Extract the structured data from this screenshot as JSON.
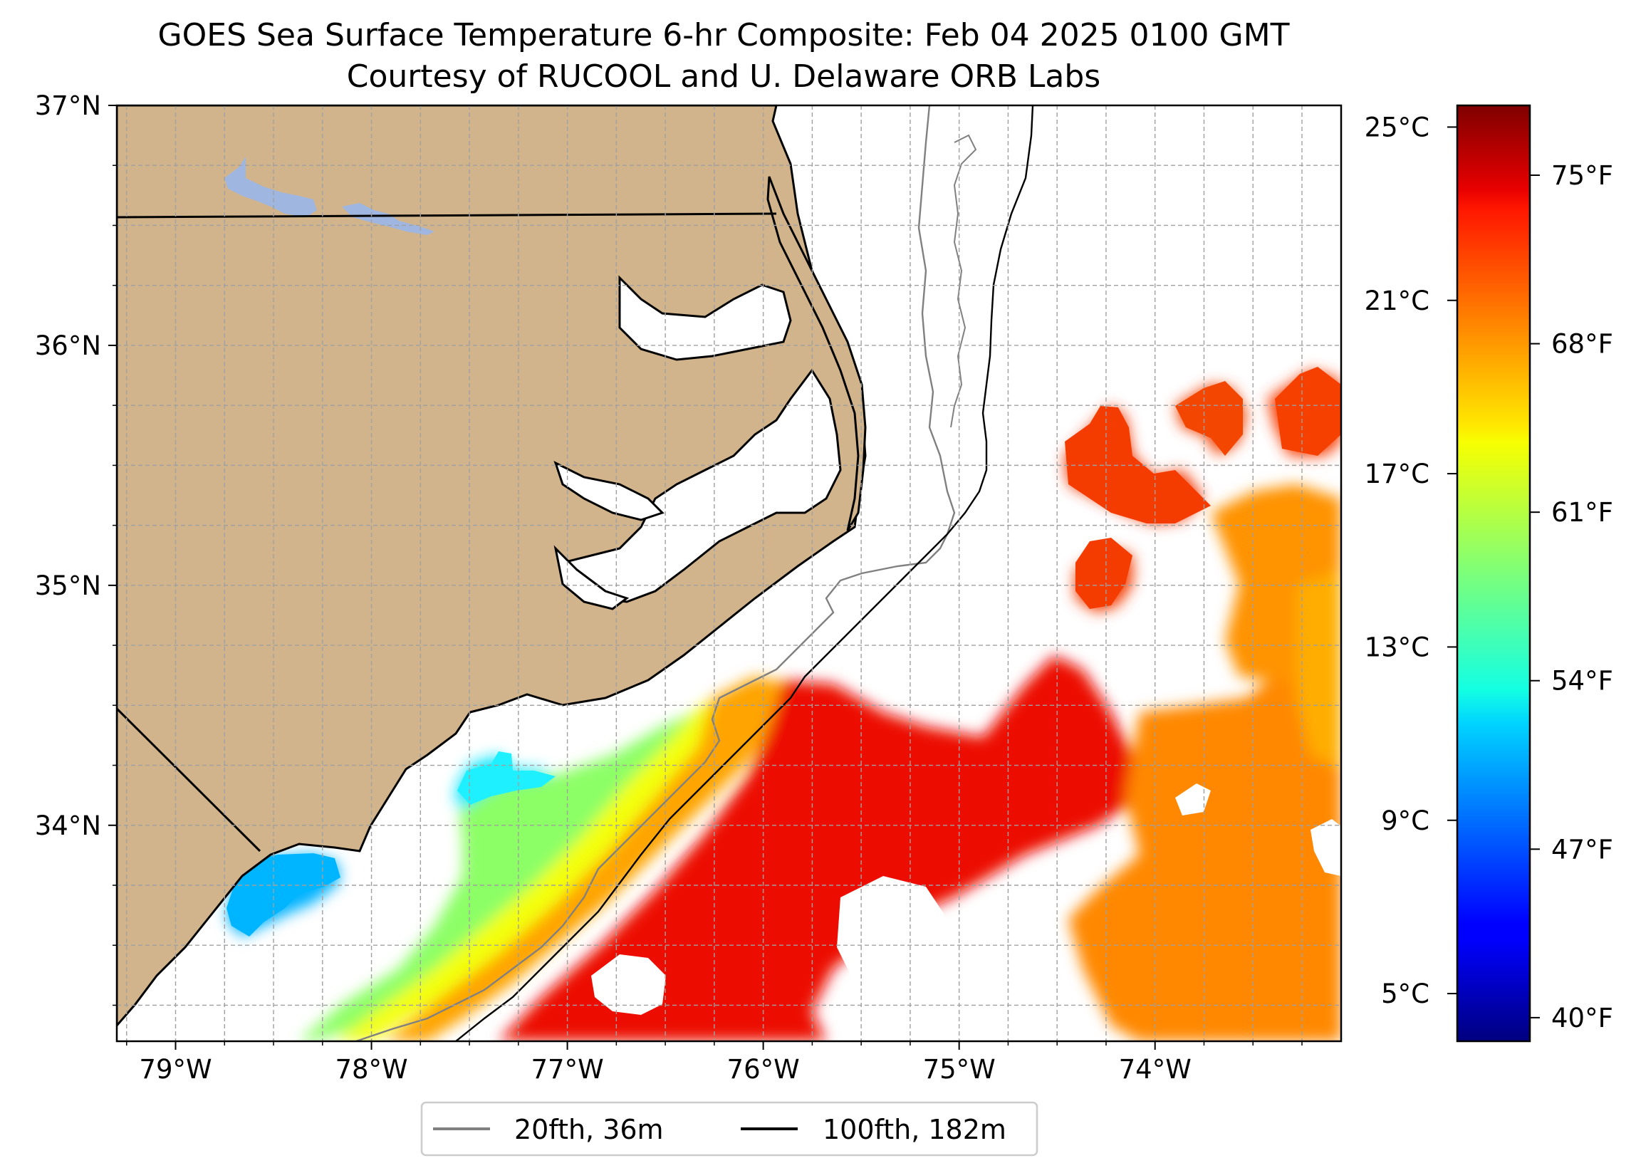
{
  "title": {
    "line1": "GOES Sea Surface Temperature 6-hr Composite: Feb 04 2025 0100 GMT",
    "line2": "Courtesy of RUCOOL and U. Delaware ORB Labs"
  },
  "map": {
    "lon_range": [
      -79.3,
      -73.05
    ],
    "lat_range": [
      33.1,
      37.0
    ],
    "lon_ticks": [
      {
        "value": -79,
        "label": "79°W"
      },
      {
        "value": -78,
        "label": "78°W"
      },
      {
        "value": -77,
        "label": "77°W"
      },
      {
        "value": -76,
        "label": "76°W"
      },
      {
        "value": -75,
        "label": "75°W"
      },
      {
        "value": -74,
        "label": "74°W"
      }
    ],
    "lat_ticks": [
      {
        "value": 37,
        "label": "37°N"
      },
      {
        "value": 36,
        "label": "36°N"
      },
      {
        "value": 35,
        "label": "35°N"
      },
      {
        "value": 34,
        "label": "34°N"
      }
    ],
    "gridlines": true,
    "colors": {
      "land": "#d2b48c",
      "ocean": "#ffffff",
      "lake": "#9fb6e0",
      "coastline": "#000000",
      "isobath_20fth": "#808080",
      "isobath_100fth": "#000000"
    }
  },
  "legend": {
    "placement": "bottom-center",
    "items": [
      {
        "label": "20fth, 36m",
        "color": "#808080"
      },
      {
        "label": "100fth, 182m",
        "color": "#000000"
      }
    ]
  },
  "colorbar": {
    "colormap": "jet",
    "range_c": [
      3.9,
      25.5
    ],
    "celsius_ticks": [
      {
        "value": 25,
        "label": "25°C"
      },
      {
        "value": 21,
        "label": "21°C"
      },
      {
        "value": 17,
        "label": "17°C"
      },
      {
        "value": 13,
        "label": "13°C"
      },
      {
        "value": 9,
        "label": "9°C"
      },
      {
        "value": 5,
        "label": "5°C"
      }
    ],
    "fahrenheit_ticks": [
      {
        "value": 75,
        "label": "75°F"
      },
      {
        "value": 68,
        "label": "68°F"
      },
      {
        "value": 61,
        "label": "61°F"
      },
      {
        "value": 54,
        "label": "54°F"
      },
      {
        "value": 47,
        "label": "47°F"
      },
      {
        "value": 40,
        "label": "40°F"
      }
    ]
  }
}
